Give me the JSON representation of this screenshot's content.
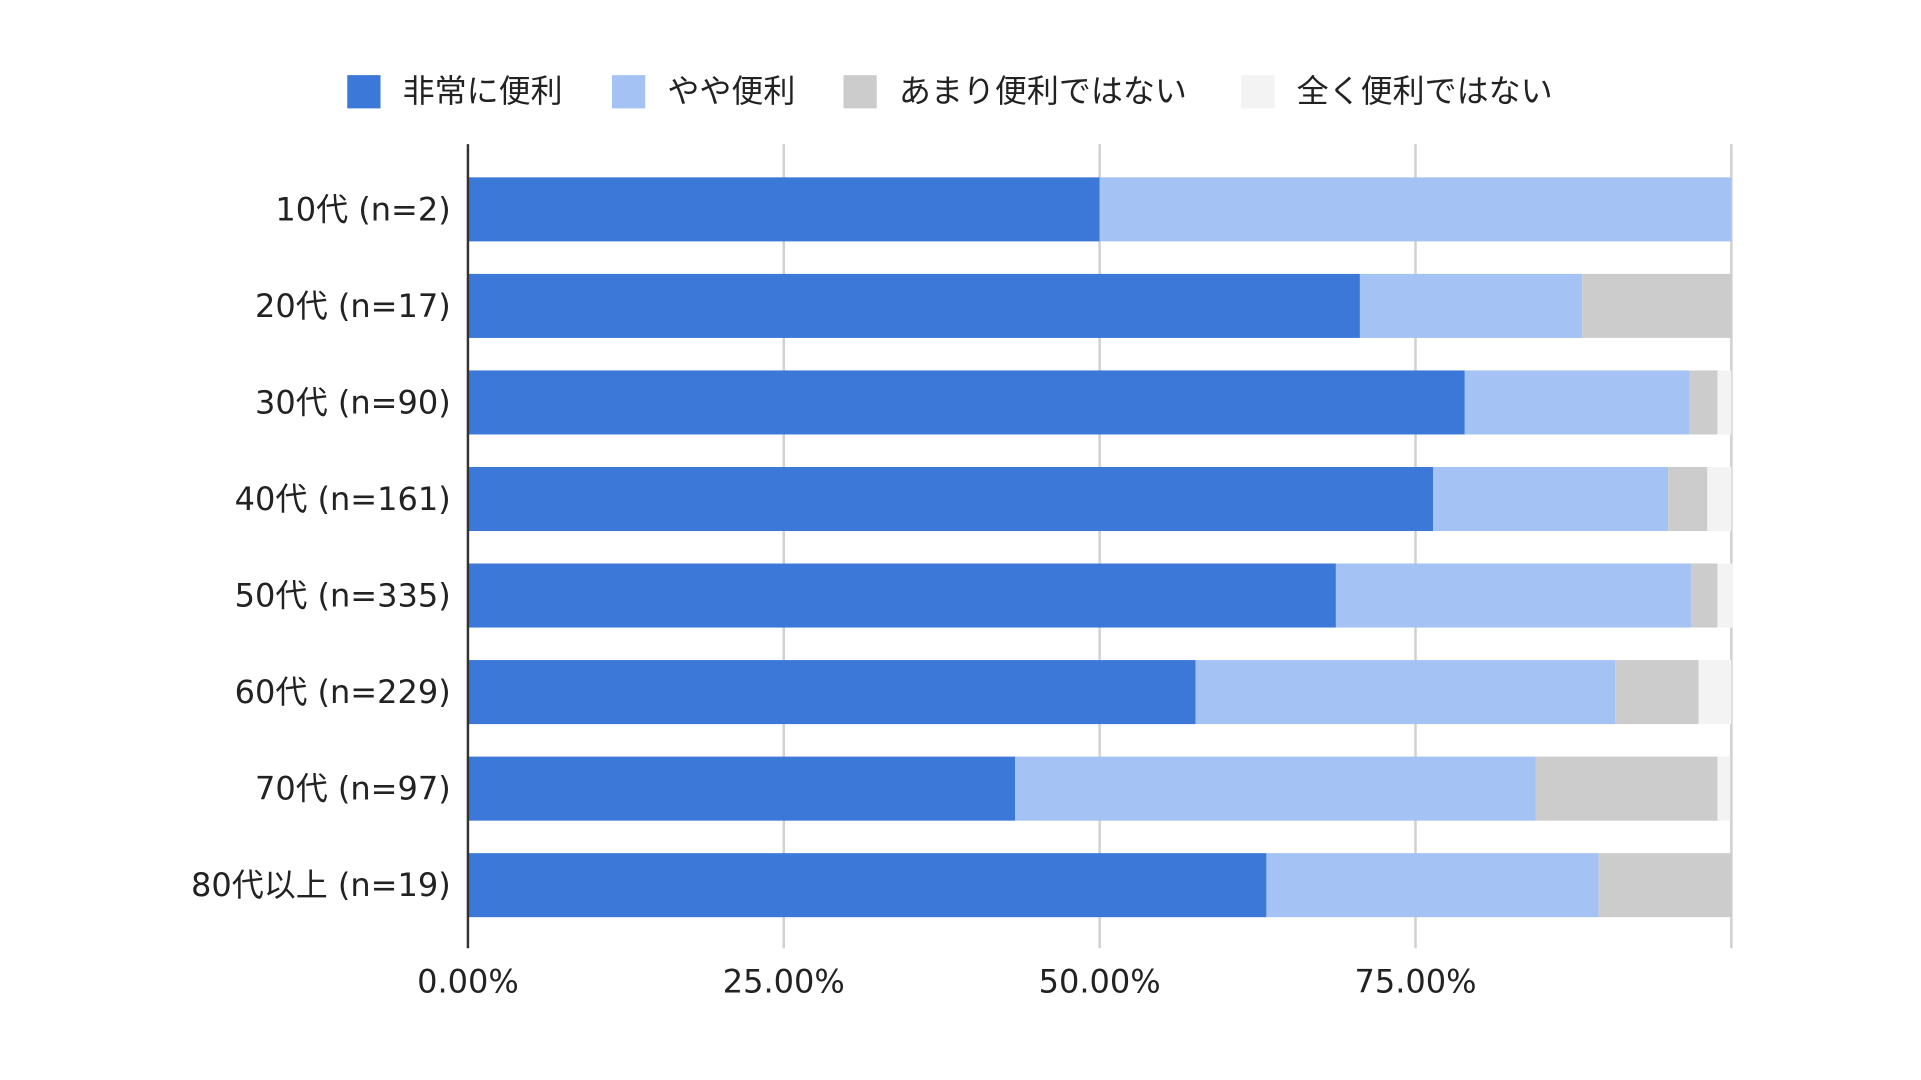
{
  "chart_data": {
    "type": "bar",
    "orientation": "horizontal",
    "stacked": true,
    "title": "",
    "xlabel": "",
    "ylabel": "",
    "xlim": [
      0,
      100
    ],
    "x_ticks": [
      "0.00%",
      "25.00%",
      "50.00%",
      "75.00%"
    ],
    "x_tick_values": [
      0,
      25,
      50,
      75
    ],
    "grid": true,
    "legend_position": "top",
    "categories": [
      "10代 (n=2)",
      "20代 (n=17)",
      "30代 (n=90)",
      "40代 (n=161)",
      "50代 (n=335)",
      "60代 (n=229)",
      "70代 (n=97)",
      "80代以上 (n=19)"
    ],
    "series": [
      {
        "name": "非常に便利",
        "color": "#3c78d8",
        "values": [
          50.0,
          70.6,
          78.9,
          76.4,
          68.7,
          57.6,
          43.3,
          63.2
        ]
      },
      {
        "name": "やや便利",
        "color": "#a4c2f4",
        "values": [
          50.0,
          17.6,
          17.8,
          18.6,
          28.1,
          33.2,
          41.2,
          26.3
        ]
      },
      {
        "name": "あまり便利ではない",
        "color": "#cccccc",
        "values": [
          0.0,
          11.8,
          2.2,
          3.1,
          2.1,
          6.6,
          14.4,
          10.5
        ]
      },
      {
        "name": "全く便利ではない",
        "color": "#f3f3f3",
        "values": [
          0.0,
          0.0,
          1.1,
          1.9,
          1.2,
          2.6,
          1.0,
          0.0
        ]
      }
    ]
  }
}
